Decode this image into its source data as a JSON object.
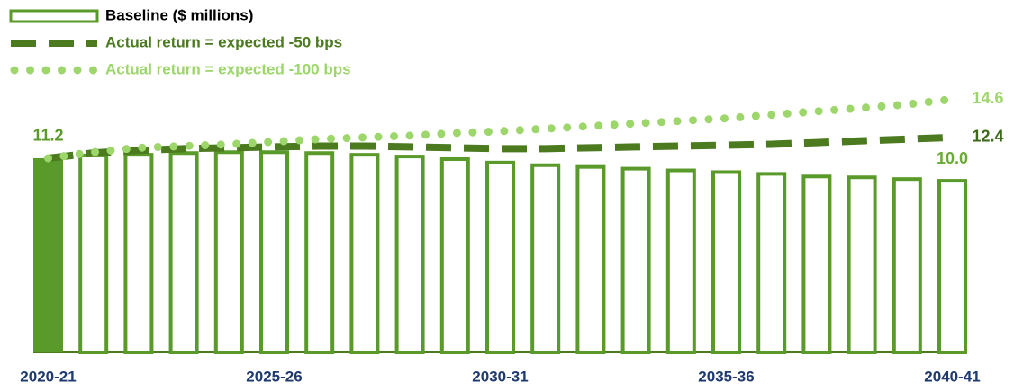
{
  "chart_data": {
    "type": "bar",
    "legend": "top-left",
    "categories": [
      "2020-21",
      null,
      null,
      null,
      null,
      "2025-26",
      null,
      null,
      null,
      null,
      "2030-31",
      null,
      null,
      null,
      null,
      "2035-36",
      null,
      null,
      null,
      null,
      "2040-41"
    ],
    "series": [
      {
        "name": "Baseline ($ millions)",
        "type": "bar",
        "color": "#5a9a2a",
        "fills": [
          "#5a9a2a",
          "#ffffff",
          "#ffffff",
          "#ffffff",
          "#ffffff",
          "#ffffff",
          "#ffffff",
          "#ffffff",
          "#ffffff",
          "#ffffff",
          "#ffffff",
          "#ffffff",
          "#ffffff",
          "#ffffff",
          "#ffffff",
          "#ffffff",
          "#ffffff",
          "#ffffff",
          "#ffffff",
          "#ffffff",
          "#ffffff"
        ],
        "values": [
          11.2,
          11.46,
          11.5,
          11.6,
          11.65,
          11.65,
          11.6,
          11.5,
          11.4,
          11.25,
          11.05,
          10.9,
          10.8,
          10.7,
          10.6,
          10.5,
          10.4,
          10.25,
          10.2,
          10.1,
          10.0
        ],
        "value_labels": [
          "11.2",
          null,
          null,
          null,
          null,
          null,
          null,
          null,
          null,
          null,
          null,
          null,
          null,
          null,
          null,
          null,
          null,
          null,
          null,
          null,
          "10.0"
        ],
        "label_color": "#5a9a2a",
        "end_label_color": "#6aab35"
      },
      {
        "name": "Actual return = expected -50 bps",
        "type": "line",
        "style": "dashed",
        "color": "#4b7a1f",
        "values": [
          11.2,
          11.5,
          11.65,
          11.75,
          11.8,
          11.85,
          11.9,
          11.9,
          11.85,
          11.8,
          11.75,
          11.75,
          11.8,
          11.85,
          11.9,
          11.95,
          12.0,
          12.1,
          12.2,
          12.3,
          12.4
        ],
        "value_labels": [
          null,
          null,
          null,
          null,
          null,
          null,
          null,
          null,
          null,
          null,
          null,
          null,
          null,
          null,
          null,
          null,
          null,
          null,
          null,
          null,
          "12.4"
        ]
      },
      {
        "name": "Actual return = expected -100 bps",
        "type": "line",
        "style": "dotted",
        "color": "#9dd66b",
        "values": [
          11.2,
          11.55,
          11.8,
          11.9,
          12.0,
          12.15,
          12.3,
          12.4,
          12.5,
          12.65,
          12.75,
          12.9,
          13.05,
          13.2,
          13.35,
          13.5,
          13.7,
          13.9,
          14.1,
          14.3,
          14.6
        ],
        "value_labels": [
          null,
          null,
          null,
          null,
          null,
          null,
          null,
          null,
          null,
          null,
          null,
          null,
          null,
          null,
          null,
          null,
          null,
          null,
          null,
          null,
          "14.6"
        ]
      }
    ]
  }
}
